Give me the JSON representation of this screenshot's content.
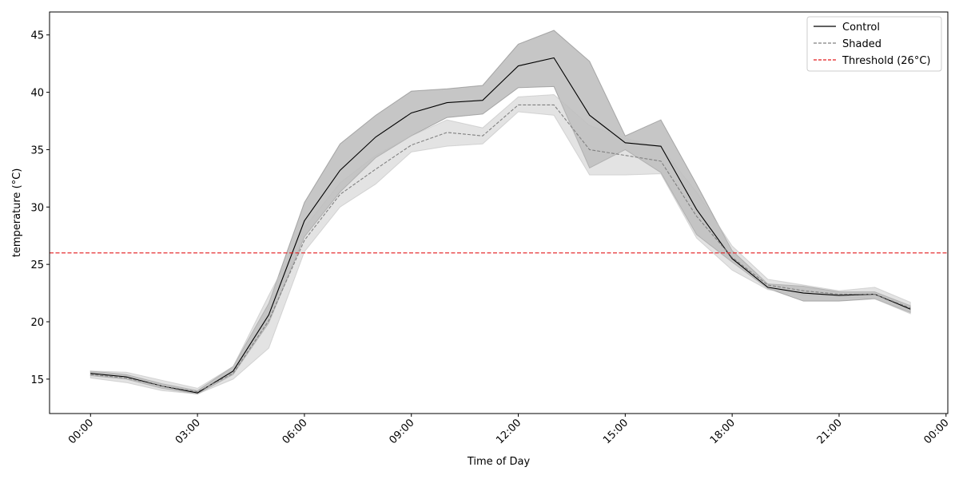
{
  "chart_data": {
    "type": "line",
    "xlabel": "Time of Day",
    "ylabel": "temperature (°C)",
    "x": [
      "00:00",
      "01:00",
      "02:00",
      "03:00",
      "04:00",
      "05:00",
      "06:00",
      "07:00",
      "08:00",
      "09:00",
      "10:00",
      "11:00",
      "12:00",
      "13:00",
      "14:00",
      "15:00",
      "16:00",
      "17:00",
      "18:00",
      "19:00",
      "20:00",
      "21:00",
      "22:00",
      "23:00"
    ],
    "xlim_hours": [
      -1.15,
      24.05
    ],
    "ylim": [
      12.0,
      47.0
    ],
    "x_ticks": [
      {
        "hour": 0,
        "label": "00:00"
      },
      {
        "hour": 3,
        "label": "03:00"
      },
      {
        "hour": 6,
        "label": "06:00"
      },
      {
        "hour": 9,
        "label": "09:00"
      },
      {
        "hour": 12,
        "label": "12:00"
      },
      {
        "hour": 15,
        "label": "15:00"
      },
      {
        "hour": 18,
        "label": "18:00"
      },
      {
        "hour": 21,
        "label": "21:00"
      },
      {
        "hour": 24,
        "label": "00:00"
      }
    ],
    "y_ticks": [
      15,
      20,
      25,
      30,
      35,
      40,
      45
    ],
    "series": [
      {
        "name": "Control",
        "color": "#000000",
        "dash": "solid",
        "band_color": "#808080",
        "band_opacity": 0.45,
        "values": [
          15.5,
          15.2,
          14.4,
          13.8,
          15.7,
          20.6,
          28.8,
          33.2,
          36.1,
          38.2,
          39.1,
          39.3,
          42.3,
          43.0,
          38.0,
          35.6,
          35.3,
          29.8,
          25.5,
          23.0,
          22.5,
          22.3,
          22.4,
          21.1
        ],
        "lower": [
          15.3,
          15.0,
          14.2,
          13.7,
          15.4,
          19.9,
          27.4,
          31.3,
          34.3,
          36.2,
          37.8,
          38.1,
          40.4,
          40.5,
          33.4,
          35.0,
          33.0,
          27.6,
          25.2,
          22.9,
          21.8,
          21.8,
          22.0,
          20.8
        ],
        "upper": [
          15.7,
          15.4,
          14.6,
          14.0,
          16.1,
          21.6,
          30.4,
          35.5,
          38.0,
          40.1,
          40.3,
          40.6,
          44.2,
          45.4,
          42.7,
          36.2,
          37.6,
          32.0,
          26.2,
          23.3,
          23.1,
          22.6,
          22.6,
          21.4
        ]
      },
      {
        "name": "Shaded",
        "color": "#808080",
        "dash": "dashed",
        "band_color": "#c0c0c0",
        "band_opacity": 0.45,
        "values": [
          15.4,
          15.1,
          14.4,
          13.9,
          15.5,
          20.1,
          27.1,
          31.1,
          33.3,
          35.4,
          36.5,
          36.2,
          38.9,
          38.9,
          35.0,
          34.5,
          34.0,
          29.2,
          25.6,
          23.2,
          22.7,
          22.4,
          22.4,
          21.2
        ],
        "lower": [
          15.1,
          14.7,
          14.0,
          13.7,
          15.0,
          17.7,
          26.1,
          30.0,
          32.0,
          34.8,
          35.3,
          35.5,
          38.3,
          38.0,
          32.8,
          32.8,
          32.9,
          27.3,
          24.5,
          22.8,
          22.3,
          22.2,
          22.0,
          20.7
        ],
        "upper": [
          15.7,
          15.6,
          14.9,
          14.2,
          16.1,
          22.3,
          28.2,
          32.1,
          34.5,
          36.2,
          37.6,
          36.9,
          39.6,
          39.8,
          37.1,
          36.0,
          35.2,
          31.3,
          26.6,
          23.7,
          23.2,
          22.7,
          23.0,
          21.7
        ]
      }
    ],
    "threshold": {
      "name": "Threshold (26°C)",
      "value": 26,
      "color": "#e31a1c",
      "dash": "dashed"
    },
    "legend": {
      "position": "top-right"
    },
    "grid": false
  }
}
